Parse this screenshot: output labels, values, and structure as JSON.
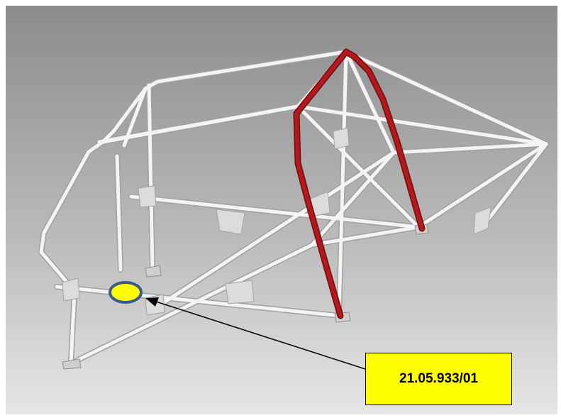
{
  "callout": {
    "part_number": "21.05.933/01"
  },
  "colors": {
    "background_top": "#8a8a8a",
    "background_bottom": "#e4e4e4",
    "tube": "#f2f2f2",
    "tube_outline": "#a8a8a8",
    "highlighted_tube": "#b3181c",
    "marker_fill": "#ffff00",
    "marker_border": "#3a5a8c",
    "label_fill": "#ffff00"
  }
}
